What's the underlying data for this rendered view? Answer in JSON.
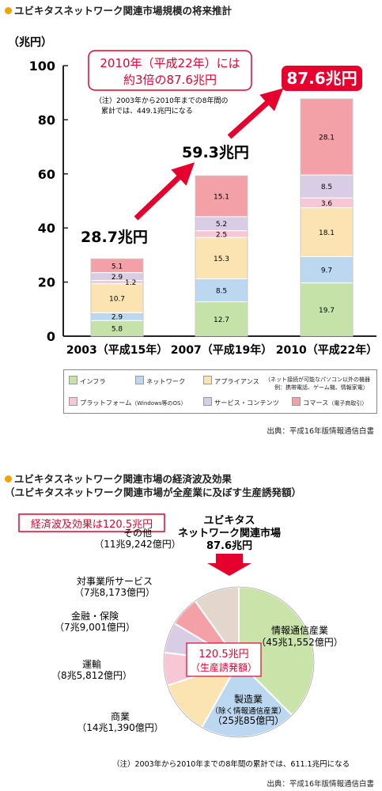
{
  "section1": {
    "title": "ユビキタスネットワーク関連市場規模の将来推計",
    "callout_line1": "2010年（平成22年）には",
    "callout_line2": "約3倍の87.6兆円",
    "note_line1": "（注）2003年から2010年までの8年間の",
    "note_line2": "累計では、449.1兆円になる",
    "total_labels": [
      "28.7兆円",
      "59.3兆円",
      "87.6兆円"
    ],
    "source": "出典：平成16年版情報通信白書",
    "legend": {
      "items": [
        "インフラ",
        "ネットワーク",
        "アプライアンス",
        "プラットフォーム",
        "サービス・コンテンツ",
        "コマース"
      ],
      "notes": [
        "（ネット接続が可能なパソコン以外の機器",
        "例：携帯電話、ゲーム機、情報家電）",
        "（Windows等のOS）",
        "（電子商取引）"
      ]
    }
  },
  "chart_data": [
    {
      "type": "bar",
      "stacked": true,
      "title": "",
      "ylabel": "（兆円）",
      "xlabel": "",
      "categories": [
        "2003（平成15年）",
        "2007（平成19年）",
        "2010（平成22年）"
      ],
      "ylim": [
        0,
        100
      ],
      "yticks": [
        0,
        20,
        40,
        60,
        80,
        100
      ],
      "series": [
        {
          "name": "インフラ",
          "values": [
            5.8,
            12.7,
            19.7
          ],
          "color": "#c5e3a8"
        },
        {
          "name": "ネットワーク",
          "values": [
            2.9,
            8.5,
            9.7
          ],
          "color": "#bcd7f0"
        },
        {
          "name": "アプライアンス",
          "values": [
            10.7,
            15.3,
            18.1
          ],
          "color": "#fce3b2"
        },
        {
          "name": "プラットフォーム",
          "values": [
            1.2,
            2.5,
            3.6
          ],
          "color": "#f8c7d5"
        },
        {
          "name": "サービス・コンテンツ",
          "values": [
            2.9,
            5.2,
            8.5
          ],
          "color": "#d8cde5"
        },
        {
          "name": "コマース",
          "values": [
            5.1,
            15.1,
            28.1
          ],
          "color": "#f4a0a7"
        }
      ],
      "totals": [
        28.7,
        59.3,
        87.6
      ],
      "grid": false
    },
    {
      "type": "pie",
      "title": "",
      "slices": [
        {
          "name": "情報通信産業",
          "value": 45.1552,
          "label": "（45兆1,552億円）",
          "color": "#c9e3a8"
        },
        {
          "name": "製造業",
          "value": 25.0085,
          "label": "（25兆85億円）",
          "sublabel": "（除く情報通信産業）",
          "color": "#bcd7f0"
        },
        {
          "name": "商業",
          "value": 14.139,
          "label": "（14兆1,390億円）",
          "color": "#fce3b2"
        },
        {
          "name": "運輸",
          "value": 8.5812,
          "label": "（8兆5,812億円）",
          "color": "#f8c7d5"
        },
        {
          "name": "金融・保険",
          "value": 7.9001,
          "label": "（7兆9,001億円）",
          "color": "#d8cde5"
        },
        {
          "name": "対事業所サービス",
          "value": 7.8173,
          "label": "（7兆8,173億円）",
          "color": "#f4a0a7"
        },
        {
          "name": "その他",
          "value": 11.9242,
          "label": "（11兆9,242億円）",
          "color": "#e3d6cd"
        }
      ],
      "center_label": [
        "120.5兆円",
        "（生産誘発額）"
      ]
    }
  ],
  "section2": {
    "title_line1": "ユビキタスネットワーク関連市場の経済波及効果",
    "title_line2": "（ユビキタスネットワーク関連市場が全産業に及ぼす生産誘発額）",
    "badge": "経済波及効果は120.5兆円",
    "market_line1": "ユビキタス",
    "market_line2": "ネットワーク関連市場",
    "market_line3": "87.6兆円",
    "note": "（注）2003年から2010年までの8年間の累計では、611.1兆円になる",
    "source": "出典：平成16年版情報通信白書"
  }
}
